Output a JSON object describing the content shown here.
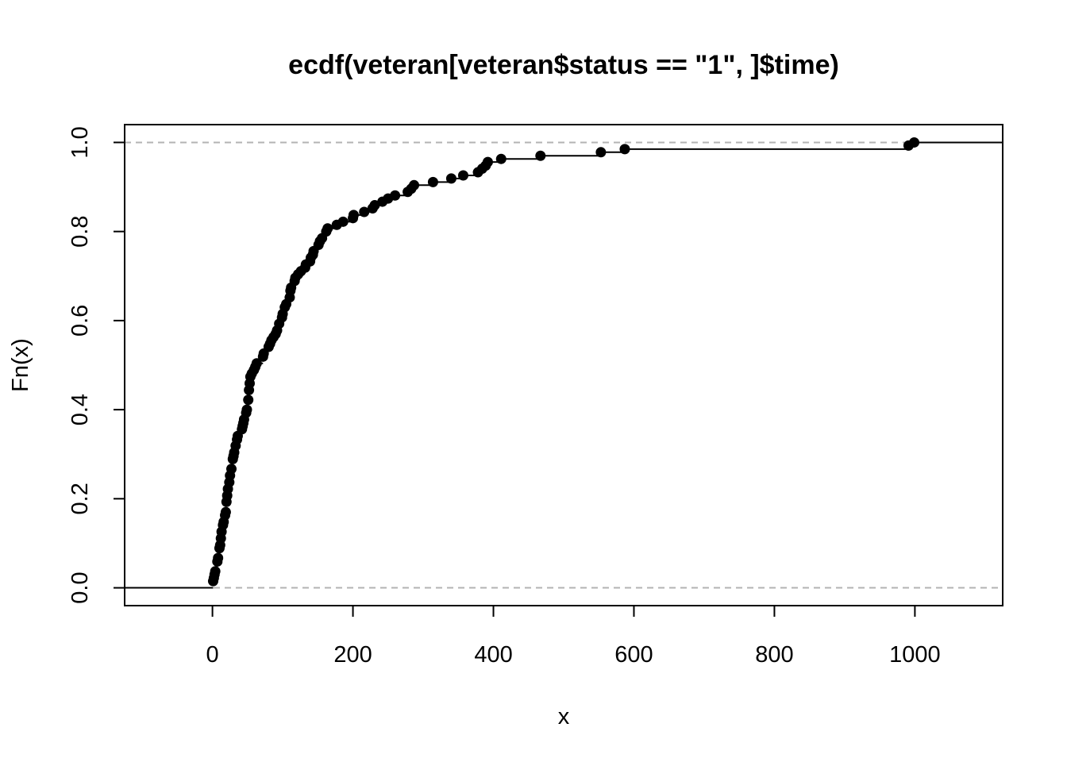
{
  "chart_data": {
    "type": "ecdf",
    "title": "ecdf(veteran[veteran$status == \"1\", ]$time)",
    "xlabel": "x",
    "ylabel": "Fn(x)",
    "xlim": [
      -125,
      1125
    ],
    "ylim": [
      -0.04,
      1.04
    ],
    "x_ticks": [
      "0",
      "200",
      "400",
      "600",
      "800",
      "1000"
    ],
    "y_ticks": [
      "0.0",
      "0.2",
      "0.4",
      "0.6",
      "0.8",
      "1.0"
    ],
    "reference_lines": [
      0,
      1
    ],
    "steps": [
      {
        "x": 1,
        "y": 0.015
      },
      {
        "x": 2,
        "y": 0.022
      },
      {
        "x": 3,
        "y": 0.03
      },
      {
        "x": 4,
        "y": 0.037
      },
      {
        "x": 7,
        "y": 0.059
      },
      {
        "x": 8,
        "y": 0.067
      },
      {
        "x": 10,
        "y": 0.089
      },
      {
        "x": 11,
        "y": 0.096
      },
      {
        "x": 12,
        "y": 0.111
      },
      {
        "x": 13,
        "y": 0.126
      },
      {
        "x": 15,
        "y": 0.141
      },
      {
        "x": 16,
        "y": 0.148
      },
      {
        "x": 18,
        "y": 0.163
      },
      {
        "x": 19,
        "y": 0.17
      },
      {
        "x": 20,
        "y": 0.193
      },
      {
        "x": 21,
        "y": 0.207
      },
      {
        "x": 22,
        "y": 0.222
      },
      {
        "x": 24,
        "y": 0.237
      },
      {
        "x": 25,
        "y": 0.252
      },
      {
        "x": 27,
        "y": 0.267
      },
      {
        "x": 29,
        "y": 0.289
      },
      {
        "x": 30,
        "y": 0.296
      },
      {
        "x": 31,
        "y": 0.304
      },
      {
        "x": 33,
        "y": 0.319
      },
      {
        "x": 35,
        "y": 0.333
      },
      {
        "x": 36,
        "y": 0.341
      },
      {
        "x": 42,
        "y": 0.356
      },
      {
        "x": 43,
        "y": 0.363
      },
      {
        "x": 44,
        "y": 0.37
      },
      {
        "x": 45,
        "y": 0.378
      },
      {
        "x": 48,
        "y": 0.393
      },
      {
        "x": 49,
        "y": 0.4
      },
      {
        "x": 51,
        "y": 0.422
      },
      {
        "x": 52,
        "y": 0.444
      },
      {
        "x": 53,
        "y": 0.459
      },
      {
        "x": 54,
        "y": 0.474
      },
      {
        "x": 56,
        "y": 0.481
      },
      {
        "x": 59,
        "y": 0.489
      },
      {
        "x": 61,
        "y": 0.496
      },
      {
        "x": 63,
        "y": 0.504
      },
      {
        "x": 72,
        "y": 0.519
      },
      {
        "x": 73,
        "y": 0.526
      },
      {
        "x": 80,
        "y": 0.541
      },
      {
        "x": 82,
        "y": 0.548
      },
      {
        "x": 84,
        "y": 0.556
      },
      {
        "x": 87,
        "y": 0.563
      },
      {
        "x": 90,
        "y": 0.57
      },
      {
        "x": 92,
        "y": 0.578
      },
      {
        "x": 95,
        "y": 0.593
      },
      {
        "x": 99,
        "y": 0.607
      },
      {
        "x": 100,
        "y": 0.615
      },
      {
        "x": 103,
        "y": 0.63
      },
      {
        "x": 105,
        "y": 0.637
      },
      {
        "x": 110,
        "y": 0.652
      },
      {
        "x": 111,
        "y": 0.667
      },
      {
        "x": 112,
        "y": 0.674
      },
      {
        "x": 117,
        "y": 0.689
      },
      {
        "x": 118,
        "y": 0.696
      },
      {
        "x": 122,
        "y": 0.704
      },
      {
        "x": 126,
        "y": 0.711
      },
      {
        "x": 132,
        "y": 0.719
      },
      {
        "x": 133,
        "y": 0.726
      },
      {
        "x": 139,
        "y": 0.733
      },
      {
        "x": 140,
        "y": 0.741
      },
      {
        "x": 143,
        "y": 0.748
      },
      {
        "x": 144,
        "y": 0.756
      },
      {
        "x": 151,
        "y": 0.77
      },
      {
        "x": 153,
        "y": 0.778
      },
      {
        "x": 156,
        "y": 0.785
      },
      {
        "x": 162,
        "y": 0.8
      },
      {
        "x": 164,
        "y": 0.807
      },
      {
        "x": 177,
        "y": 0.815
      },
      {
        "x": 186,
        "y": 0.822
      },
      {
        "x": 200,
        "y": 0.83
      },
      {
        "x": 201,
        "y": 0.837
      },
      {
        "x": 216,
        "y": 0.844
      },
      {
        "x": 228,
        "y": 0.852
      },
      {
        "x": 231,
        "y": 0.859
      },
      {
        "x": 242,
        "y": 0.867
      },
      {
        "x": 250,
        "y": 0.874
      },
      {
        "x": 260,
        "y": 0.881
      },
      {
        "x": 278,
        "y": 0.889
      },
      {
        "x": 283,
        "y": 0.896
      },
      {
        "x": 287,
        "y": 0.904
      },
      {
        "x": 314,
        "y": 0.911
      },
      {
        "x": 340,
        "y": 0.919
      },
      {
        "x": 357,
        "y": 0.926
      },
      {
        "x": 378,
        "y": 0.933
      },
      {
        "x": 384,
        "y": 0.941
      },
      {
        "x": 389,
        "y": 0.948
      },
      {
        "x": 392,
        "y": 0.956
      },
      {
        "x": 411,
        "y": 0.963
      },
      {
        "x": 467,
        "y": 0.97
      },
      {
        "x": 553,
        "y": 0.978
      },
      {
        "x": 587,
        "y": 0.985
      },
      {
        "x": 991,
        "y": 0.993
      },
      {
        "x": 999,
        "y": 1.0
      }
    ]
  }
}
